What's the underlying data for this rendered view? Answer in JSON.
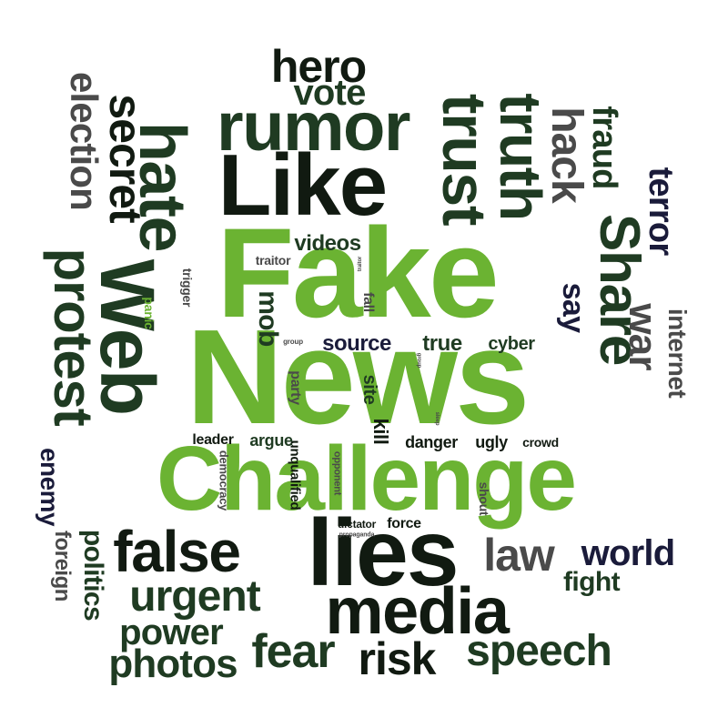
{
  "palette": {
    "green": "#6bb332",
    "dark": "#111a11",
    "forest": "#1f3b22",
    "gray": "#4a4a4a",
    "navy": "#1a1b3a"
  },
  "words": {
    "fake": "Fake",
    "news": "News",
    "challenge": "Challenge",
    "like": "Like",
    "share": "Share",
    "web": "Web",
    "lies": "lies",
    "media": "media",
    "rumor": "rumor",
    "trust": "trust",
    "truth": "truth",
    "hate": "hate",
    "false": "false",
    "protest": "protest",
    "hero": "hero",
    "vote": "vote",
    "secret": "secret",
    "election": "election",
    "hack": "hack",
    "fraud": "fraud",
    "terror": "terror",
    "war": "war",
    "internet": "internet",
    "say": "say",
    "law": "law",
    "world": "world",
    "fight": "fight",
    "urgent": "urgent",
    "power": "power",
    "photos": "photos",
    "fear": "fear",
    "risk": "risk",
    "speech": "speech",
    "enemy": "enemy",
    "foreign": "foreign",
    "politics": "politics",
    "videos": "videos",
    "source": "source",
    "true": "true",
    "cyber": "cyber",
    "mob": "mob",
    "traitor": "traitor",
    "trigger": "trigger",
    "panic": "panic",
    "fall": "fall",
    "party": "party",
    "site": "site",
    "kill": "kill",
    "leader": "leader",
    "argue": "argue",
    "danger": "danger",
    "ugly": "ugly",
    "crowd": "crowd",
    "democracy": "democracy",
    "unqualified": "unqualified",
    "opponent": "opponent",
    "shout": "shout",
    "dictator": "dictator",
    "force": "force",
    "propaganda": "propaganda",
    "group": "group",
    "sleep": "sleep"
  }
}
